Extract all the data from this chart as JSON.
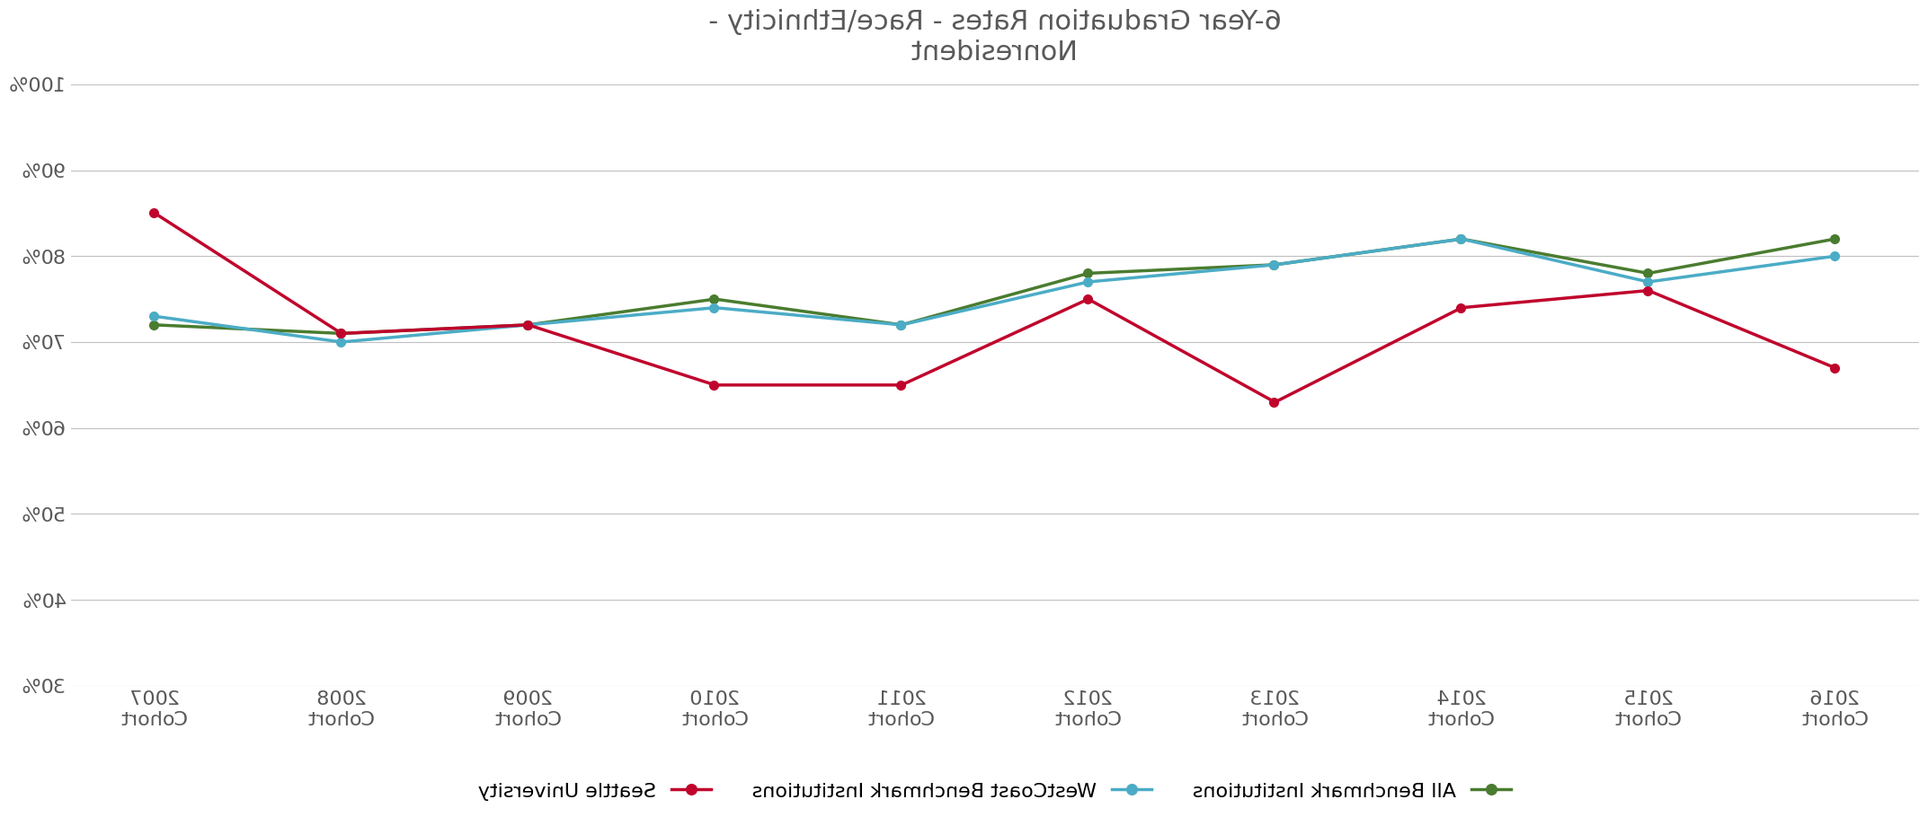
{
  "title": "6-Year Graduation Rates - Race\\Ethnicity -\nNonresident",
  "categories": [
    "2016\nCohort",
    "2015\nCohort",
    "2014\nCohort",
    "2013\nCohort",
    "2012\nCohort",
    "2011\nCohort",
    "2010\nCohort",
    "2009\nCohort",
    "2008\nCohort",
    "2007\nCohort"
  ],
  "all_benchmark": [
    82,
    78,
    82,
    79,
    78,
    72,
    75,
    72,
    71,
    72
  ],
  "westcoast_benchmark": [
    80,
    77,
    82,
    79,
    77,
    72,
    74,
    72,
    70,
    73
  ],
  "seattle_university": [
    67,
    76,
    74,
    63,
    75,
    65,
    65,
    72,
    71,
    85
  ],
  "all_benchmark_color": "#4a7c2f",
  "westcoast_benchmark_color": "#4bacc6",
  "seattle_university_color": "#c0032c",
  "background_color": "#ffffff",
  "ylim_min": 30,
  "ylim_max": 100,
  "ytick_step": 10,
  "legend_labels": [
    "All Benchmark Institutions",
    "WestCoast Benchmark Institutions",
    "Seattle University"
  ],
  "grid_color": "#c0c0c0",
  "title_fontsize": 22,
  "tick_fontsize": 16,
  "legend_fontsize": 16
}
